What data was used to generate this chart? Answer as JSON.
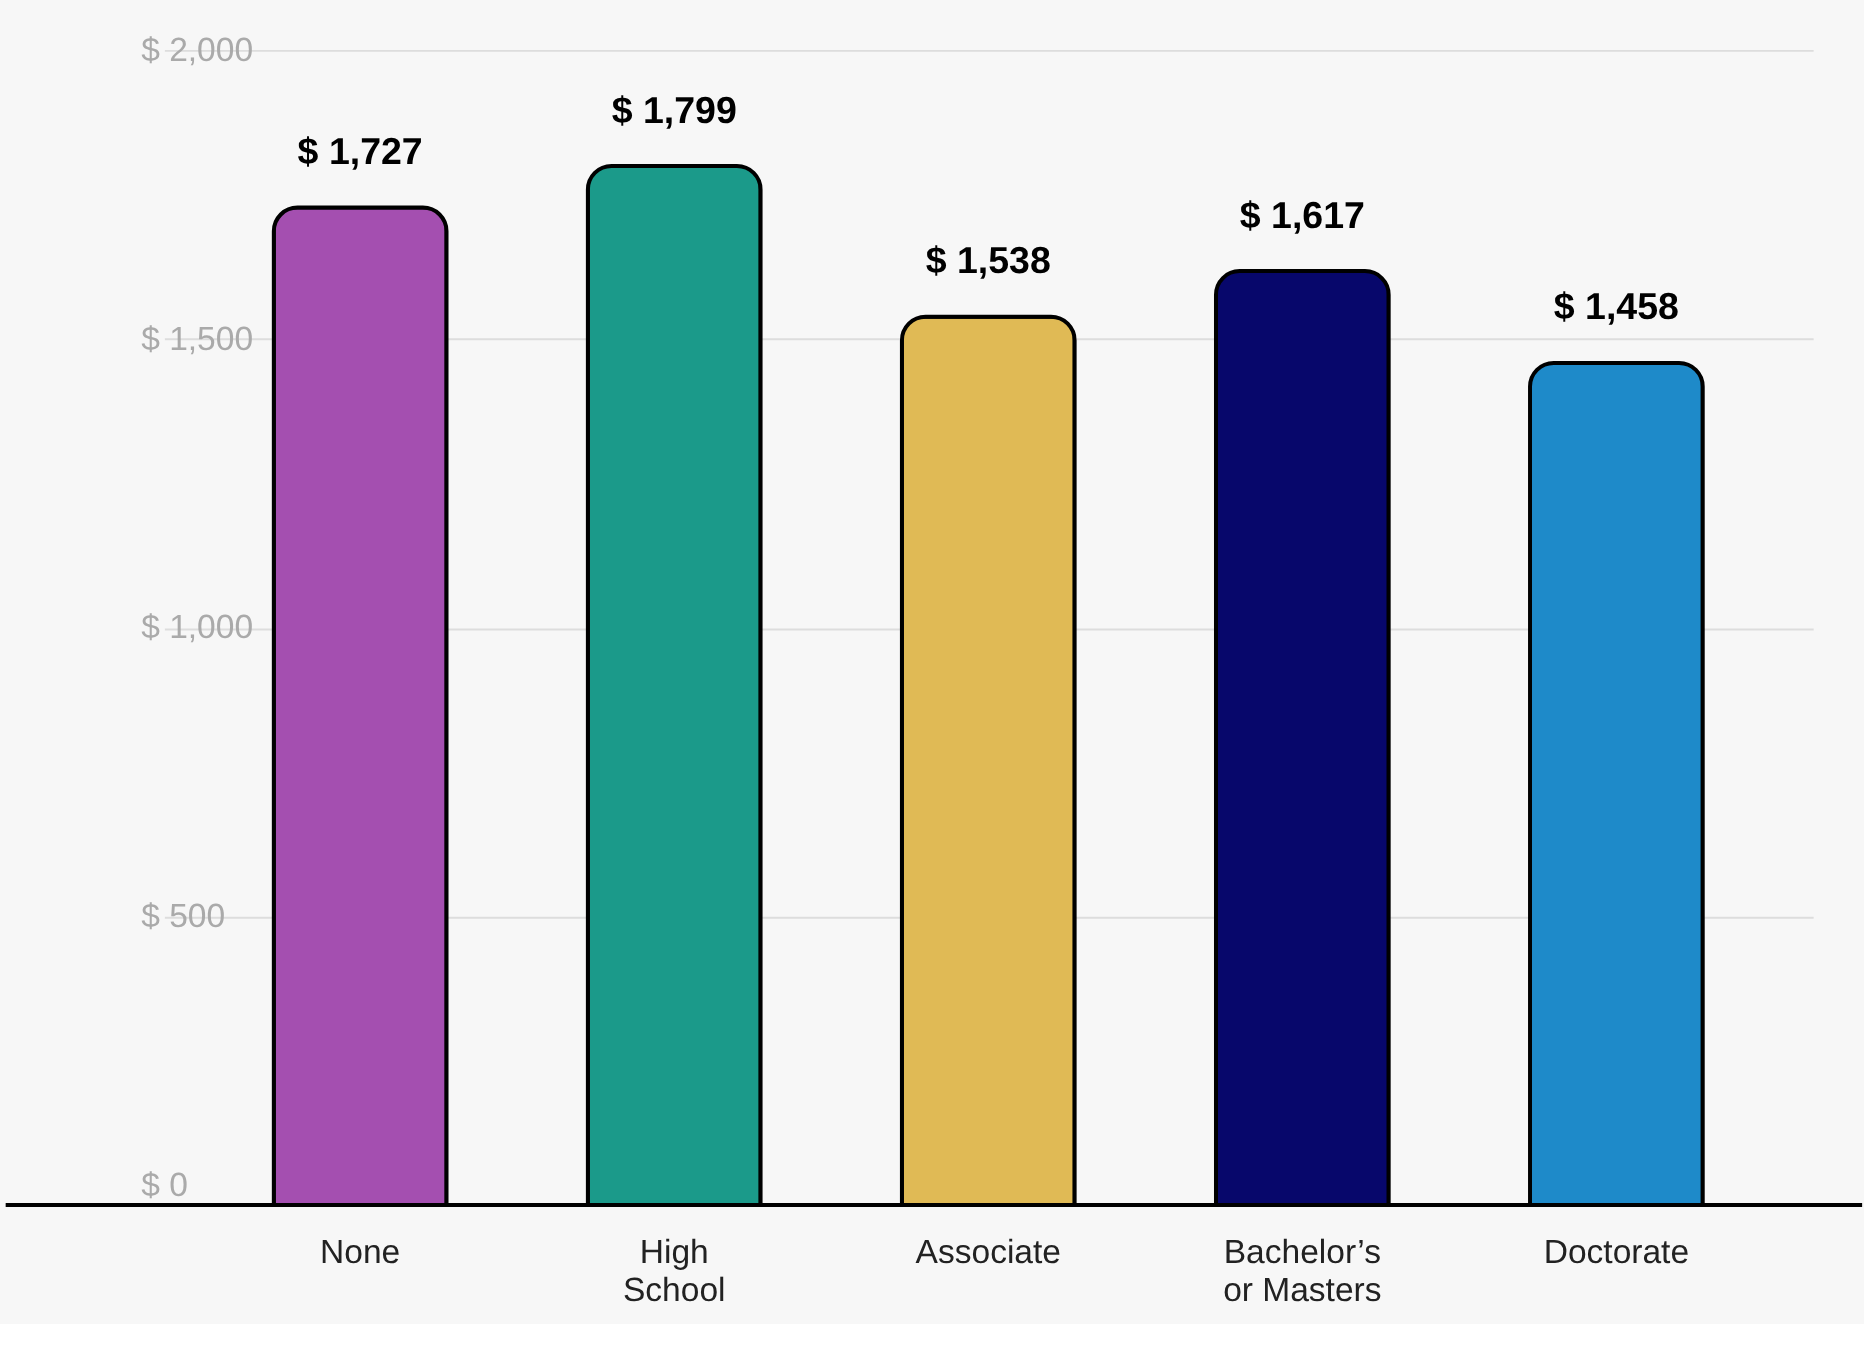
{
  "chart_data": {
    "type": "bar",
    "categories": [
      "None",
      "High School",
      "Associate",
      "Bachelor’s or Masters",
      "Doctorate"
    ],
    "values": [
      1727,
      1799,
      1538,
      1617,
      1458
    ],
    "colors": [
      "#a44fb0",
      "#1b9a8a",
      "#e0ba55",
      "#07076b",
      "#1e8ac9"
    ],
    "value_labels": [
      "$ 1,727",
      "$ 1,799",
      "$ 1,538",
      "$ 1,617",
      "$ 1,458"
    ],
    "ylim": [
      0,
      2000
    ],
    "yticks": [
      {
        "value": 0,
        "label": "$ 0"
      },
      {
        "value": 500,
        "label": "$ 500"
      },
      {
        "value": 1000,
        "label": "$ 1,000"
      },
      {
        "value": 1500,
        "label": "$ 1,500"
      },
      {
        "value": 2000,
        "label": "$ 2,000"
      }
    ],
    "grid": "y"
  }
}
